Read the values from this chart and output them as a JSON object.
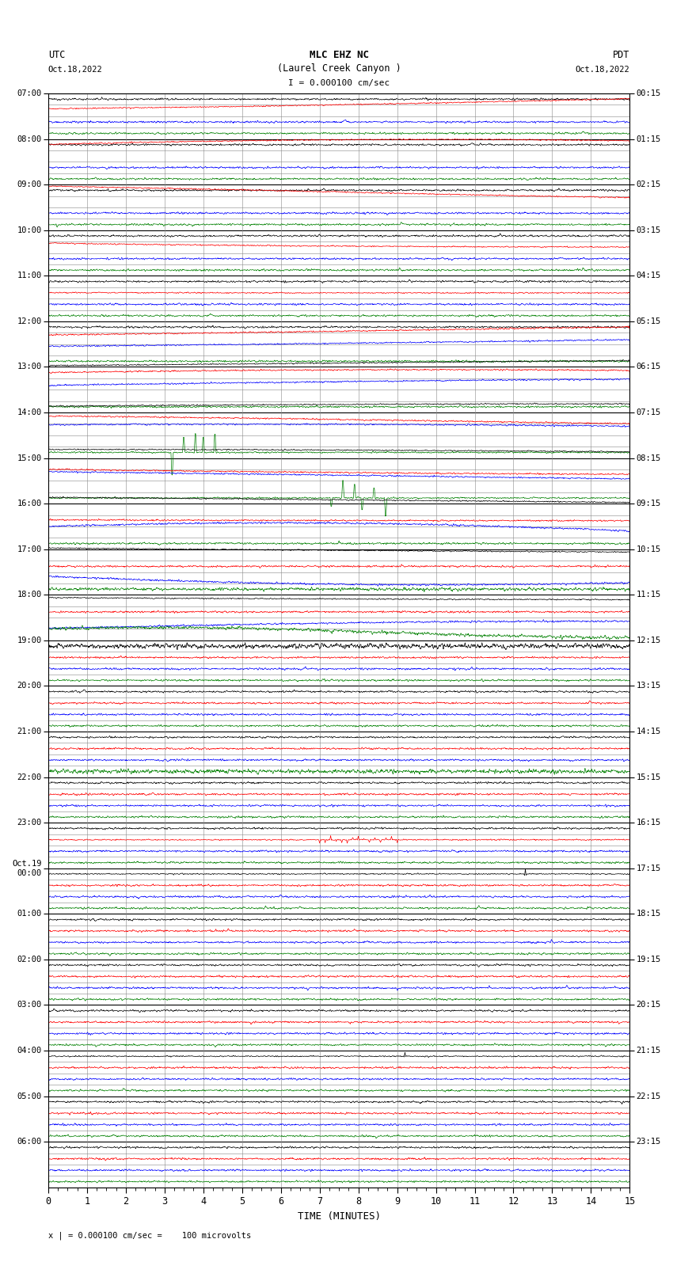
{
  "title_line1": "MLC EHZ NC",
  "title_line2": "(Laurel Creek Canyon )",
  "title_line3": "I = 0.000100 cm/sec",
  "left_label_top": "UTC",
  "left_label_date": "Oct.18,2022",
  "right_label_top": "PDT",
  "right_label_date": "Oct.18,2022",
  "xlabel": "TIME (MINUTES)",
  "bottom_note": "x | = 0.000100 cm/sec =    100 microvolts",
  "utc_labels": [
    "07:00",
    "08:00",
    "09:00",
    "10:00",
    "11:00",
    "12:00",
    "13:00",
    "14:00",
    "15:00",
    "16:00",
    "17:00",
    "18:00",
    "19:00",
    "20:00",
    "21:00",
    "22:00",
    "23:00",
    "Oct.19\n00:00",
    "01:00",
    "02:00",
    "03:00",
    "04:00",
    "05:00",
    "06:00"
  ],
  "pdt_labels": [
    "00:15",
    "01:15",
    "02:15",
    "03:15",
    "04:15",
    "05:15",
    "06:15",
    "07:15",
    "08:15",
    "09:15",
    "10:15",
    "11:15",
    "12:15",
    "13:15",
    "14:15",
    "15:15",
    "16:15",
    "17:15",
    "18:15",
    "19:15",
    "20:15",
    "21:15",
    "22:15",
    "23:15"
  ],
  "n_rows": 24,
  "traces_per_row": 4,
  "x_min": 0,
  "x_max": 15,
  "x_ticks": [
    0,
    1,
    2,
    3,
    4,
    5,
    6,
    7,
    8,
    9,
    10,
    11,
    12,
    13,
    14,
    15
  ],
  "colors": [
    "black",
    "red",
    "blue",
    "green"
  ],
  "bg_color": "#ffffff",
  "grid_color": "#888888",
  "fig_width": 8.5,
  "fig_height": 16.13
}
